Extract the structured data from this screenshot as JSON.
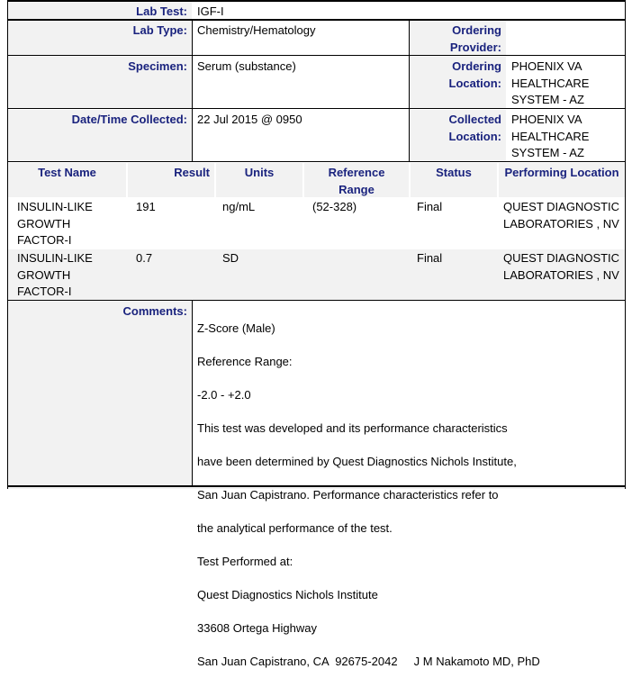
{
  "header_fields": {
    "lab_test": {
      "label": "Lab Test:",
      "value": "IGF-I"
    },
    "lab_type": {
      "label": "Lab Type:",
      "value": "Chemistry/Hematology"
    },
    "ordering_provider": {
      "label": "Ordering Provider:",
      "value": ""
    },
    "specimen": {
      "label": "Specimen:",
      "value": "Serum (substance)"
    },
    "ordering_location": {
      "label": "Ordering Location:",
      "value": "PHOENIX VA HEALTHCARE SYSTEM - AZ"
    },
    "date_collected": {
      "label": "Date/Time Collected:",
      "value": "22 Jul 2015 @ 0950"
    },
    "collected_location": {
      "label": "Collected Location:",
      "value": "PHOENIX VA HEALTHCARE SYSTEM - AZ"
    }
  },
  "results": {
    "columns": [
      "Test Name",
      "Result",
      "Units",
      "Reference Range",
      "Status",
      "Performing Location"
    ],
    "rows": [
      [
        "INSULIN-LIKE GROWTH FACTOR-I",
        "191",
        "ng/mL",
        "(52-328)",
        "Final",
        "QUEST DIAGNOSTIC LABORATORIES , NV"
      ],
      [
        "INSULIN-LIKE GROWTH FACTOR-I",
        "0.7",
        "SD",
        "",
        "Final",
        "QUEST DIAGNOSTIC LABORATORIES , NV"
      ]
    ]
  },
  "comments": {
    "label": "Comments:",
    "lines": [
      "Z-Score (Male)",
      "Reference Range:",
      "-2.0 - +2.0",
      "This test was developed and its performance characteristics",
      "have been determined by Quest Diagnostics Nichols Institute,",
      "San Juan Capistrano. Performance characteristics refer to",
      "the analytical performance of the test.",
      "Test Performed at:",
      "Quest Diagnostics Nichols Institute",
      "33608 Ortega Highway",
      "San Juan Capistrano, CA  92675-2042     J M Nakamoto MD, PhD"
    ]
  }
}
